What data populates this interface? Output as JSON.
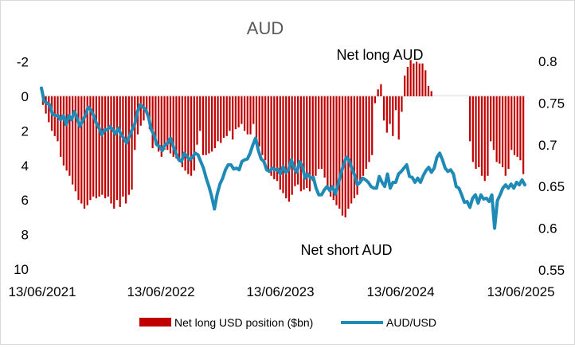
{
  "chart_data": {
    "type": "bar+line",
    "title": "AUD",
    "annotations": [
      "Net long AUD",
      "Net short AUD"
    ],
    "left_axis": {
      "ticks": [
        "-2",
        "0",
        "2",
        "4",
        "6",
        "8",
        "10"
      ],
      "min": -2,
      "max": 10,
      "inverted": true
    },
    "right_axis": {
      "ticks": [
        "0.8",
        "0.75",
        "0.7",
        "0.65",
        "0.6",
        "0.55"
      ],
      "min": 0.55,
      "max": 0.8
    },
    "x_axis": {
      "ticks": [
        "13/06/2021",
        "13/06/2022",
        "13/06/2023",
        "13/06/2024",
        "13/06/2025"
      ]
    },
    "legend": [
      "Net long USD position ($bn)",
      "AUD/USD"
    ],
    "colors": {
      "bars": "#c00000",
      "line": "#1f8ab5",
      "text": "#000000",
      "title": "#595959"
    },
    "series": [
      {
        "name": "Net long USD position ($bn)",
        "kind": "bar",
        "start": "13/06/2021",
        "interval_days": 7,
        "values": [
          0.5,
          1,
          1.5,
          2,
          2.3,
          2.6,
          3.5,
          4,
          4.3,
          4.6,
          5.1,
          5.5,
          6,
          6.2,
          6.5,
          6.3,
          6,
          5.8,
          5.9,
          5.8,
          5.7,
          5.9,
          5.8,
          6.2,
          6.5,
          6,
          6.4,
          5.8,
          6.2,
          5.7,
          5.4,
          3.1,
          2.2,
          1.7,
          1.4,
          0.9,
          1.9,
          3,
          2.8,
          3.2,
          3.5,
          3.1,
          3.1,
          3.3,
          3.5,
          3.6,
          3.8,
          4.1,
          4.3,
          4.5,
          4.6,
          4.3,
          2.8,
          2,
          3.4,
          3.4,
          3.3,
          3.2,
          3,
          2.6,
          2.7,
          2.4,
          2.3,
          2,
          2.5,
          1.9,
          1.8,
          1.6,
          2,
          2.2,
          2.2,
          1.6,
          2.4,
          2.9,
          3.4,
          3.7,
          4.3,
          4.6,
          4.8,
          4.9,
          5.4,
          5.6,
          5.9,
          6.1,
          5.7,
          5.2,
          5.1,
          5.5,
          5.4,
          5.3,
          5.5,
          4.9,
          4.6,
          4.2,
          4.2,
          4.7,
          5.2,
          5.8,
          6,
          6.3,
          6.5,
          6.9,
          7,
          6.5,
          6.2,
          5.9,
          5.7,
          5,
          4.6,
          4.2,
          3.8,
          3.4,
          0.4,
          -0.4,
          -0.7,
          1.4,
          2.1,
          1.6,
          2.3,
          0.8,
          2.5,
          0.9,
          -1.2,
          -1.7,
          -2.1,
          -1.9,
          -2,
          -1.9,
          -1.9,
          -1.5,
          -0.6,
          -0.3,
          0,
          0,
          0,
          0,
          0,
          0,
          0,
          0,
          0,
          0,
          0,
          0,
          2.6,
          3.8,
          4.2,
          4.1,
          4.6,
          4.9,
          4.6,
          2.6,
          3.1,
          3.8,
          3.9,
          4.1,
          4.6,
          4.2,
          3.1,
          3.4,
          3.5,
          3.7,
          4.5
        ]
      },
      {
        "name": "AUD/USD",
        "kind": "line",
        "start": "13/06/2021",
        "interval_days": 7,
        "values": [
          0.768,
          0.752,
          0.75,
          0.748,
          0.737,
          0.735,
          0.735,
          0.73,
          0.735,
          0.724,
          0.735,
          0.73,
          0.74,
          0.732,
          0.722,
          0.729,
          0.735,
          0.745,
          0.742,
          0.735,
          0.726,
          0.72,
          0.712,
          0.718,
          0.718,
          0.722,
          0.718,
          0.713,
          0.72,
          0.712,
          0.708,
          0.702,
          0.71,
          0.718,
          0.725,
          0.74,
          0.748,
          0.745,
          0.742,
          0.733,
          0.718,
          0.712,
          0.7,
          0.698,
          0.693,
          0.7,
          0.702,
          0.708,
          0.698,
          0.69,
          0.682,
          0.68,
          0.69,
          0.686,
          0.682,
          0.685,
          0.69,
          0.688,
          0.68,
          0.672,
          0.66,
          0.65,
          0.638,
          0.623,
          0.641,
          0.653,
          0.66,
          0.67,
          0.676,
          0.676,
          0.671,
          0.672,
          0.67,
          0.68,
          0.682,
          0.683,
          0.69,
          0.7,
          0.708,
          0.693,
          0.683,
          0.68,
          0.67,
          0.668,
          0.672,
          0.67,
          0.671,
          0.665,
          0.674,
          0.667,
          0.67,
          0.682,
          0.672,
          0.667,
          0.68,
          0.674,
          0.66,
          0.665,
          0.66,
          0.661,
          0.648,
          0.64,
          0.64,
          0.646,
          0.65,
          0.645,
          0.65,
          0.641,
          0.652,
          0.665,
          0.676,
          0.685,
          0.682,
          0.672,
          0.664,
          0.652,
          0.655,
          0.66,
          0.658,
          0.655,
          0.65,
          0.648,
          0.648,
          0.662,
          0.655,
          0.65,
          0.665,
          0.648,
          0.655,
          0.655,
          0.665,
          0.668,
          0.672,
          0.676,
          0.662,
          0.661,
          0.655,
          0.66,
          0.655,
          0.663,
          0.669,
          0.673,
          0.667,
          0.672,
          0.685,
          0.69,
          0.682,
          0.672,
          0.668,
          0.67,
          0.665,
          0.65,
          0.648,
          0.64,
          0.631,
          0.632,
          0.625,
          0.636,
          0.64,
          0.63,
          0.64,
          0.635,
          0.636,
          0.632,
          0.64,
          0.6,
          0.633,
          0.64,
          0.648,
          0.652,
          0.648,
          0.653,
          0.648,
          0.655,
          0.652,
          0.658,
          0.652
        ]
      }
    ]
  }
}
